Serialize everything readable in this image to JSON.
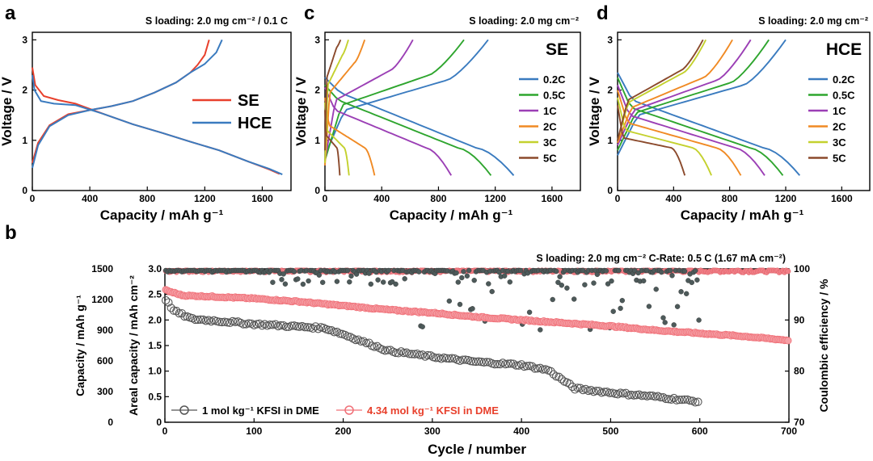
{
  "chart_data": [
    {
      "panel": "a",
      "type": "line",
      "note": "S loading: 2.0 mg cm⁻² / 0.1 C",
      "xlabel": "Capacity / mAh g⁻¹",
      "ylabel": "Voltage / V",
      "xlim": [
        0,
        1800
      ],
      "ylim": [
        0,
        3.15
      ],
      "xticks": [
        "0",
        "400",
        "800",
        "1200",
        "1600"
      ],
      "yticks": [
        "0",
        "1",
        "2",
        "3"
      ],
      "series": [
        {
          "name": "SE",
          "color": "#e8402c",
          "discharge": [
            [
              0,
              2.45
            ],
            [
              20,
              2.1
            ],
            [
              80,
              1.88
            ],
            [
              180,
              1.8
            ],
            [
              300,
              1.73
            ],
            [
              500,
              1.52
            ],
            [
              700,
              1.32
            ],
            [
              900,
              1.15
            ],
            [
              1100,
              0.97
            ],
            [
              1300,
              0.8
            ],
            [
              1500,
              0.58
            ],
            [
              1650,
              0.42
            ],
            [
              1720,
              0.33
            ]
          ],
          "charge": [
            [
              0,
              0.55
            ],
            [
              40,
              0.95
            ],
            [
              120,
              1.3
            ],
            [
              250,
              1.52
            ],
            [
              400,
              1.6
            ],
            [
              550,
              1.68
            ],
            [
              700,
              1.78
            ],
            [
              850,
              1.95
            ],
            [
              1000,
              2.15
            ],
            [
              1100,
              2.35
            ],
            [
              1150,
              2.5
            ],
            [
              1200,
              2.7
            ],
            [
              1230,
              3.0
            ]
          ]
        },
        {
          "name": "HCE",
          "color": "#3a7bbf",
          "discharge": [
            [
              0,
              2.3
            ],
            [
              15,
              2.0
            ],
            [
              60,
              1.78
            ],
            [
              150,
              1.73
            ],
            [
              300,
              1.7
            ],
            [
              500,
              1.52
            ],
            [
              700,
              1.32
            ],
            [
              900,
              1.15
            ],
            [
              1100,
              0.97
            ],
            [
              1300,
              0.8
            ],
            [
              1500,
              0.58
            ],
            [
              1650,
              0.43
            ],
            [
              1740,
              0.32
            ]
          ],
          "charge": [
            [
              0,
              0.45
            ],
            [
              40,
              0.9
            ],
            [
              120,
              1.28
            ],
            [
              250,
              1.5
            ],
            [
              400,
              1.6
            ],
            [
              550,
              1.68
            ],
            [
              700,
              1.78
            ],
            [
              850,
              1.95
            ],
            [
              1000,
              2.15
            ],
            [
              1100,
              2.35
            ],
            [
              1200,
              2.52
            ],
            [
              1280,
              2.75
            ],
            [
              1320,
              3.0
            ]
          ]
        }
      ]
    },
    {
      "panel": "c",
      "type": "line",
      "note": "S loading: 2.0 mg cm⁻²",
      "tag": "SE",
      "xlabel": "Capacity / mAh g⁻¹",
      "ylabel": "Voltage / V",
      "xlim": [
        0,
        1800
      ],
      "ylim": [
        0,
        3.15
      ],
      "xticks": [
        "0",
        "400",
        "800",
        "1200",
        "1600"
      ],
      "yticks": [
        "0",
        "1",
        "2",
        "3"
      ],
      "series": [
        {
          "name": "0.2C",
          "color": "#3a7bbf",
          "dcap": 1330,
          "dstart": 2.25,
          "dplat": 1.95,
          "dend": 0.3,
          "ccap": 1150,
          "cstart": 0.7,
          "cplat": 1.85
        },
        {
          "name": "0.5C",
          "color": "#2ea52e",
          "dcap": 1170,
          "dstart": 2.1,
          "dplat": 1.8,
          "dend": 0.3,
          "ccap": 980,
          "cstart": 0.6,
          "cplat": 1.95
        },
        {
          "name": "1C",
          "color": "#9b3fb5",
          "dcap": 890,
          "dstart": 2.05,
          "dplat": 1.6,
          "dend": 0.3,
          "ccap": 620,
          "cstart": 0.6,
          "cplat": 2.05
        },
        {
          "name": "2C",
          "color": "#f08a24",
          "dcap": 350,
          "dstart": 1.85,
          "dplat": 1.3,
          "dend": 0.3,
          "ccap": 280,
          "cstart": 0.5,
          "cplat": 2.2
        },
        {
          "name": "3C",
          "color": "#c4d12e",
          "dcap": 170,
          "dstart": 1.75,
          "dplat": 1.2,
          "dend": 0.3,
          "ccap": 165,
          "cstart": 0.55,
          "cplat": 2.35
        },
        {
          "name": "5C",
          "color": "#8b4a2c",
          "dcap": 105,
          "dstart": 1.6,
          "dplat": 1.1,
          "dend": 0.3,
          "ccap": 110,
          "cstart": 0.8,
          "cplat": 2.5
        }
      ]
    },
    {
      "panel": "d",
      "type": "line",
      "note": "S loading: 2.0 mg cm⁻²",
      "tag": "HCE",
      "xlabel": "Capacity / mAh g⁻¹",
      "ylabel": "Voltage / V",
      "xlim": [
        0,
        1800
      ],
      "ylim": [
        0,
        3.15
      ],
      "xticks": [
        "0",
        "400",
        "800",
        "1200",
        "1600"
      ],
      "yticks": [
        "0",
        "1",
        "2",
        "3"
      ],
      "series": [
        {
          "name": "0.2C",
          "color": "#3a7bbf",
          "dcap": 1300,
          "dstart": 2.35,
          "dplat": 1.8,
          "dend": 0.3,
          "ccap": 1200,
          "cstart": 0.7,
          "cplat": 1.75
        },
        {
          "name": "0.5C",
          "color": "#2ea52e",
          "dcap": 1180,
          "dstart": 2.25,
          "dplat": 1.65,
          "dend": 0.3,
          "ccap": 1080,
          "cstart": 0.8,
          "cplat": 1.8
        },
        {
          "name": "1C",
          "color": "#9b3fb5",
          "dcap": 1050,
          "dstart": 2.1,
          "dplat": 1.5,
          "dend": 0.3,
          "ccap": 950,
          "cstart": 0.9,
          "cplat": 1.85
        },
        {
          "name": "2C",
          "color": "#f08a24",
          "dcap": 880,
          "dstart": 2.0,
          "dplat": 1.35,
          "dend": 0.3,
          "ccap": 820,
          "cstart": 0.95,
          "cplat": 1.9
        },
        {
          "name": "3C",
          "color": "#c4d12e",
          "dcap": 670,
          "dstart": 1.85,
          "dplat": 1.2,
          "dend": 0.3,
          "ccap": 630,
          "cstart": 1.0,
          "cplat": 2.0
        },
        {
          "name": "5C",
          "color": "#8b4a2c",
          "dcap": 480,
          "dstart": 1.7,
          "dplat": 1.05,
          "dend": 0.3,
          "ccap": 610,
          "cstart": 1.0,
          "cplat": 2.05
        }
      ]
    },
    {
      "panel": "b",
      "type": "scatter",
      "note": "S loading: 2.0 mg cm⁻² C-Rate: 0.5 C (1.67 mA cm⁻²)",
      "xlabel": "Cycle / number",
      "ylabel_left_outer": "Capacity / mAh g⁻¹",
      "ylabel_left_inner": "Areal capacity / mAh cm⁻²",
      "ylabel_right": "Coulombic efficiency / %",
      "xlim": [
        0,
        700
      ],
      "ylim_capacity": [
        0,
        1500
      ],
      "ylim_areal": [
        0,
        3.0
      ],
      "ylim_ce": [
        70,
        100
      ],
      "xticks": [
        "0",
        "100",
        "200",
        "300",
        "400",
        "500",
        "600",
        "700"
      ],
      "yticks_capacity": [
        "0",
        "300",
        "600",
        "900",
        "1200",
        "1500"
      ],
      "yticks_areal": [
        "0",
        "0.5",
        "1.0",
        "1.5",
        "2.0",
        "2.5",
        "3.0"
      ],
      "yticks_ce": [
        "70",
        "80",
        "90",
        "100"
      ],
      "series": [
        {
          "name": "1 mol kg⁻¹ KFSI in DME",
          "color": "#555555",
          "cycles": 600,
          "capacity_points": [
            [
              1,
              1200
            ],
            [
              10,
              1090
            ],
            [
              30,
              1010
            ],
            [
              60,
              990
            ],
            [
              100,
              960
            ],
            [
              150,
              935
            ],
            [
              180,
              920
            ],
            [
              200,
              860
            ],
            [
              250,
              700
            ],
            [
              300,
              640
            ],
            [
              350,
              590
            ],
            [
              400,
              560
            ],
            [
              430,
              510
            ],
            [
              460,
              330
            ],
            [
              500,
              290
            ],
            [
              550,
              250
            ],
            [
              600,
              200
            ]
          ],
          "ce_mean": 99.5,
          "ce_scatter_range": [
            88,
            100
          ]
        },
        {
          "name": "4.34 mol kg⁻¹ KFSI in DME",
          "color": "#f07078",
          "cycles": 700,
          "capacity_points": [
            [
              1,
              1290
            ],
            [
              20,
              1240
            ],
            [
              50,
              1230
            ],
            [
              100,
              1210
            ],
            [
              150,
              1180
            ],
            [
              200,
              1140
            ],
            [
              250,
              1100
            ],
            [
              300,
              1070
            ],
            [
              350,
              1030
            ],
            [
              400,
              1000
            ],
            [
              450,
              970
            ],
            [
              500,
              940
            ],
            [
              550,
              900
            ],
            [
              600,
              870
            ],
            [
              650,
              840
            ],
            [
              700,
              800
            ]
          ],
          "ce_mean": 99.6
        }
      ]
    }
  ],
  "panel_labels": {
    "a": "a",
    "b": "b",
    "c": "c",
    "d": "d"
  }
}
